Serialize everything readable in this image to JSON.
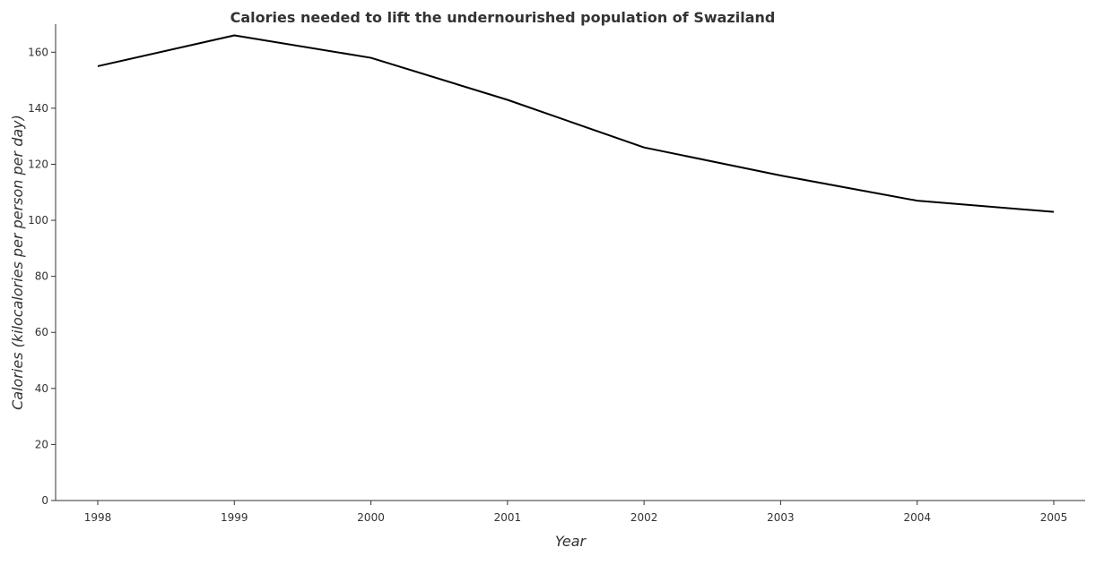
{
  "chart_data": {
    "type": "line",
    "title": "Calories needed to lift the undernourished population of Swaziland",
    "xlabel": "Year",
    "ylabel": "Calories (kilocalories per person per day)",
    "categories": [
      "1998",
      "1999",
      "2000",
      "2001",
      "2002",
      "2003",
      "2004",
      "2005"
    ],
    "values": [
      155,
      166,
      158,
      143,
      126,
      116,
      107,
      103
    ],
    "y_ticks": [
      0,
      20,
      40,
      60,
      80,
      100,
      120,
      140,
      160
    ],
    "ylim": [
      0,
      170
    ],
    "grid": false,
    "line_color": "#000000"
  }
}
